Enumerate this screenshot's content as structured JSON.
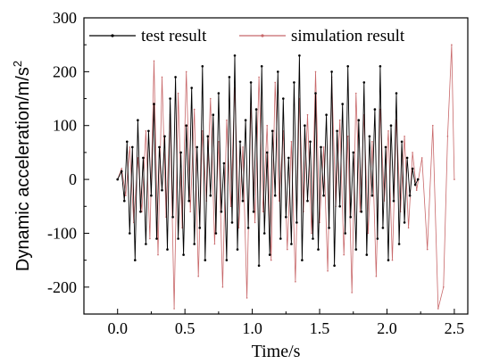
{
  "chart_data": {
    "type": "line",
    "xlabel": "Time/s",
    "ylabel": "Dynamic acceleration/m/s",
    "ylabel_sup": "2",
    "xlim": [
      -0.25,
      2.6
    ],
    "ylim": [
      -250,
      300
    ],
    "xticks": [
      "0.0",
      "0.5",
      "1.0",
      "1.5",
      "2.0",
      "2.5"
    ],
    "xtick_values": [
      0.0,
      0.5,
      1.0,
      1.5,
      2.0,
      2.5
    ],
    "yticks": [
      "-200",
      "-100",
      "0",
      "100",
      "200",
      "300"
    ],
    "ytick_values": [
      -200,
      -100,
      0,
      100,
      200,
      300
    ],
    "legend_position": "top",
    "series": [
      {
        "name": "test result",
        "color": "#000000",
        "marker": "dot",
        "x": [
          0.0,
          0.03,
          0.05,
          0.07,
          0.09,
          0.11,
          0.13,
          0.15,
          0.17,
          0.19,
          0.21,
          0.23,
          0.25,
          0.27,
          0.29,
          0.31,
          0.33,
          0.35,
          0.37,
          0.39,
          0.41,
          0.43,
          0.45,
          0.47,
          0.49,
          0.51,
          0.53,
          0.55,
          0.57,
          0.59,
          0.61,
          0.63,
          0.65,
          0.67,
          0.69,
          0.71,
          0.73,
          0.75,
          0.77,
          0.79,
          0.81,
          0.83,
          0.85,
          0.87,
          0.89,
          0.91,
          0.93,
          0.95,
          0.97,
          0.99,
          1.01,
          1.03,
          1.05,
          1.07,
          1.09,
          1.11,
          1.13,
          1.15,
          1.17,
          1.19,
          1.21,
          1.23,
          1.25,
          1.27,
          1.29,
          1.31,
          1.33,
          1.35,
          1.37,
          1.39,
          1.41,
          1.43,
          1.45,
          1.47,
          1.49,
          1.51,
          1.53,
          1.55,
          1.57,
          1.59,
          1.61,
          1.63,
          1.65,
          1.67,
          1.69,
          1.71,
          1.73,
          1.75,
          1.77,
          1.79,
          1.81,
          1.83,
          1.85,
          1.87,
          1.89,
          1.91,
          1.93,
          1.95,
          1.97,
          1.99,
          2.01,
          2.03,
          2.05,
          2.07,
          2.09,
          2.11,
          2.13,
          2.15,
          2.17,
          2.19,
          2.21,
          2.23
        ],
        "y": [
          0,
          15,
          -40,
          70,
          -100,
          60,
          -150,
          110,
          -60,
          40,
          -120,
          90,
          -30,
          140,
          -110,
          60,
          -20,
          80,
          -130,
          150,
          -70,
          190,
          -110,
          50,
          -140,
          100,
          -40,
          170,
          -120,
          60,
          -90,
          210,
          -150,
          80,
          -30,
          120,
          -100,
          160,
          -60,
          30,
          -150,
          190,
          -80,
          230,
          -130,
          70,
          -40,
          110,
          -90,
          180,
          -60,
          130,
          -160,
          210,
          -100,
          50,
          -140,
          90,
          -30,
          200,
          -110,
          150,
          -70,
          40,
          -120,
          180,
          -80,
          230,
          -150,
          100,
          -40,
          70,
          -110,
          160,
          -130,
          60,
          -30,
          120,
          -90,
          200,
          -160,
          90,
          -50,
          140,
          -100,
          210,
          -70,
          50,
          -130,
          110,
          -60,
          180,
          -140,
          80,
          -30,
          130,
          -110,
          210,
          -90,
          60,
          -150,
          100,
          -40,
          160,
          -120,
          70,
          -80,
          40,
          -30,
          20,
          -10,
          0
        ]
      },
      {
        "name": "simulation result",
        "color": "#c8686a",
        "marker": "none",
        "x": [
          0.0,
          0.03,
          0.06,
          0.09,
          0.12,
          0.15,
          0.18,
          0.21,
          0.24,
          0.27,
          0.3,
          0.33,
          0.36,
          0.39,
          0.42,
          0.45,
          0.48,
          0.51,
          0.54,
          0.57,
          0.6,
          0.63,
          0.66,
          0.69,
          0.72,
          0.75,
          0.78,
          0.81,
          0.84,
          0.87,
          0.9,
          0.93,
          0.96,
          0.99,
          1.02,
          1.05,
          1.08,
          1.11,
          1.14,
          1.17,
          1.2,
          1.23,
          1.26,
          1.29,
          1.32,
          1.35,
          1.38,
          1.41,
          1.44,
          1.47,
          1.5,
          1.53,
          1.56,
          1.59,
          1.62,
          1.65,
          1.68,
          1.71,
          1.74,
          1.77,
          1.8,
          1.83,
          1.86,
          1.89,
          1.92,
          1.95,
          1.98,
          2.01,
          2.04,
          2.07,
          2.1,
          2.13,
          2.16,
          2.19,
          2.22,
          2.26,
          2.3,
          2.34,
          2.38,
          2.42,
          2.45,
          2.48,
          2.5
        ],
        "y": [
          0,
          20,
          -30,
          60,
          -80,
          40,
          -60,
          90,
          -110,
          220,
          -140,
          190,
          -70,
          120,
          -240,
          160,
          -90,
          200,
          -60,
          130,
          -180,
          90,
          -40,
          150,
          -120,
          70,
          -200,
          110,
          -50,
          170,
          -90,
          60,
          -220,
          140,
          -80,
          190,
          -60,
          100,
          -150,
          180,
          -40,
          90,
          -130,
          70,
          -190,
          150,
          -60,
          120,
          -100,
          200,
          -80,
          60,
          -170,
          190,
          -50,
          110,
          -140,
          80,
          -210,
          160,
          -60,
          120,
          -100,
          70,
          -180,
          130,
          -40,
          90,
          -150,
          110,
          -60,
          80,
          -90,
          50,
          -20,
          40,
          -130,
          100,
          -240,
          -200,
          80,
          250,
          0
        ]
      }
    ]
  }
}
